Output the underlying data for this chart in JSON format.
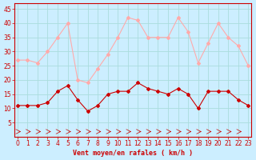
{
  "x": [
    0,
    1,
    2,
    3,
    4,
    5,
    6,
    7,
    8,
    9,
    10,
    11,
    12,
    13,
    14,
    15,
    16,
    17,
    18,
    19,
    20,
    21,
    22,
    23
  ],
  "wind_avg": [
    11,
    11,
    11,
    12,
    16,
    18,
    13,
    9,
    11,
    15,
    16,
    16,
    19,
    17,
    16,
    15,
    17,
    15,
    10,
    16,
    16,
    16,
    13,
    11
  ],
  "wind_gust": [
    27,
    27,
    26,
    30,
    35,
    40,
    20,
    19,
    24,
    29,
    35,
    42,
    41,
    35,
    35,
    35,
    42,
    37,
    26,
    33,
    40,
    35,
    32,
    25
  ],
  "xlabel": "Vent moyen/en rafales ( km/h )",
  "yticks": [
    5,
    10,
    15,
    20,
    25,
    30,
    35,
    40,
    45
  ],
  "xticks": [
    0,
    1,
    2,
    3,
    4,
    5,
    6,
    7,
    8,
    9,
    10,
    11,
    12,
    13,
    14,
    15,
    16,
    17,
    18,
    19,
    20,
    21,
    22,
    23
  ],
  "bg_color": "#cceeff",
  "grid_color": "#aadddd",
  "avg_color": "#cc0000",
  "gust_color": "#ffaaaa",
  "xlabel_color": "#cc0000",
  "tick_color": "#cc0000",
  "ylim": [
    0,
    47
  ],
  "xlim": [
    -0.3,
    23.3
  ]
}
